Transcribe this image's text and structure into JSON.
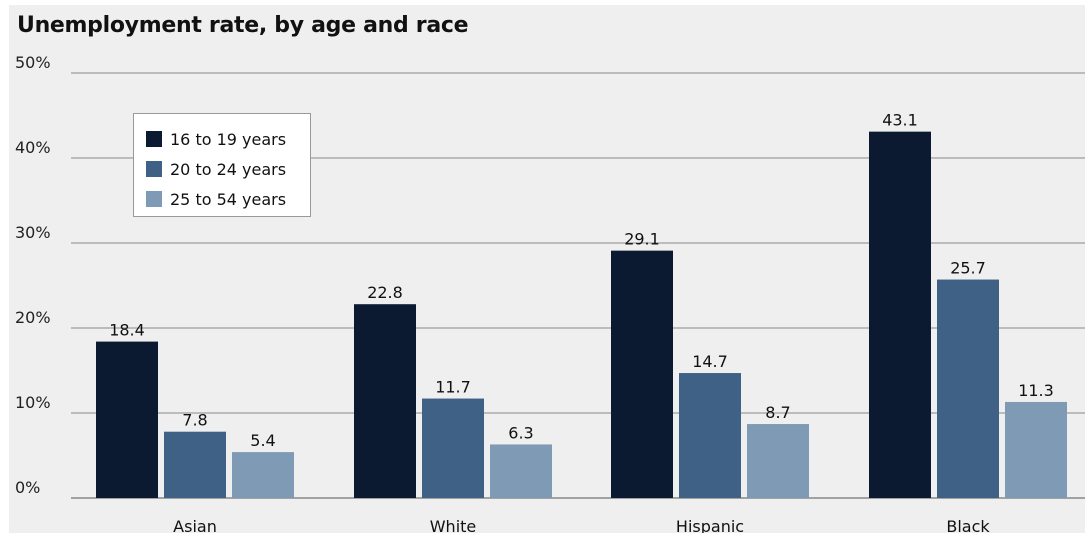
{
  "chart_data": {
    "type": "bar",
    "title": "Unemployment rate, by age and race",
    "categories": [
      "Asian",
      "White",
      "Hispanic",
      "Black"
    ],
    "series": [
      {
        "name": "16 to 19 years",
        "values": [
          18.4,
          22.8,
          29.1,
          43.1
        ],
        "color": "#0b1a30"
      },
      {
        "name": "20 to 24 years",
        "values": [
          7.8,
          11.7,
          14.7,
          25.7
        ],
        "color": "#3f6186"
      },
      {
        "name": "25 to 54 years",
        "values": [
          5.4,
          6.3,
          8.7,
          11.3
        ],
        "color": "#7e9ab5"
      }
    ],
    "yticks": [
      "0%",
      "10%",
      "20%",
      "30%",
      "40%",
      "50%"
    ],
    "ylim": [
      0,
      50
    ],
    "grid": true,
    "legend": "top-left",
    "xlabel": "",
    "ylabel": ""
  }
}
